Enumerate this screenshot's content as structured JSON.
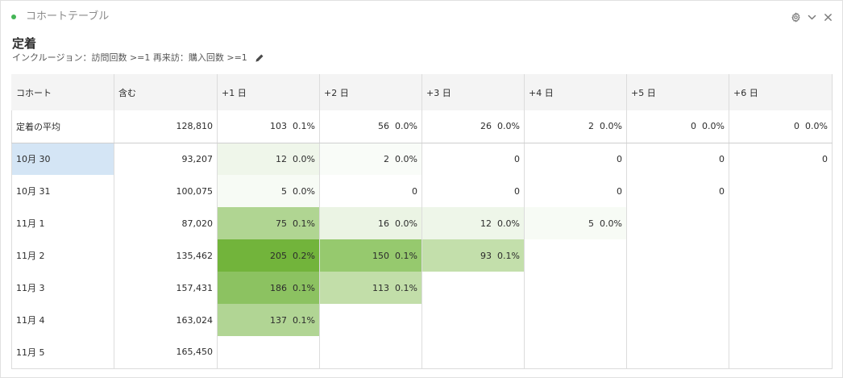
{
  "header": {
    "title": "コホートテーブル",
    "icons": [
      "gear-icon",
      "chevron-down-icon",
      "close-icon"
    ]
  },
  "section": {
    "title": "定着",
    "subtitle": "インクルージョン：訪問回数 >=1 再来訪：購入回数 >=1"
  },
  "table": {
    "headers": [
      "コホート",
      "含む",
      "+1 日",
      "+2 日",
      "+3 日",
      "+4 日",
      "+5 日",
      "+6 日"
    ],
    "average": {
      "label": "定着の平均",
      "included": "128,810",
      "cells": [
        {
          "count": "103",
          "pct": "0.1%"
        },
        {
          "count": "56",
          "pct": "0.0%"
        },
        {
          "count": "26",
          "pct": "0.0%"
        },
        {
          "count": "2",
          "pct": "0.0%"
        },
        {
          "count": "0",
          "pct": "0.0%"
        },
        {
          "count": "0",
          "pct": "0.0%"
        }
      ]
    },
    "rows": [
      {
        "label": "10月 30",
        "included": "93,207",
        "selected": true,
        "cells": [
          {
            "count": "12",
            "pct": "0.0%",
            "bg": "#eff6ea"
          },
          {
            "count": "2",
            "pct": "0.0%",
            "bg": "#f9fcf8"
          },
          {
            "count": "0",
            "pct": "",
            "bg": "#ffffff"
          },
          {
            "count": "0",
            "pct": "",
            "bg": "#ffffff"
          },
          {
            "count": "0",
            "pct": "",
            "bg": "#ffffff"
          },
          {
            "count": "0",
            "pct": "",
            "bg": "#ffffff"
          }
        ]
      },
      {
        "label": "10月 31",
        "included": "100,075",
        "cells": [
          {
            "count": "5",
            "pct": "0.0%",
            "bg": "#f7fbf5"
          },
          {
            "count": "0",
            "pct": "",
            "bg": "#ffffff"
          },
          {
            "count": "0",
            "pct": "",
            "bg": "#ffffff"
          },
          {
            "count": "0",
            "pct": "",
            "bg": "#ffffff"
          },
          {
            "count": "0",
            "pct": "",
            "bg": "#ffffff"
          },
          null
        ]
      },
      {
        "label": "11月 1",
        "included": "87,020",
        "cells": [
          {
            "count": "75",
            "pct": "0.1%",
            "bg": "#b0d592"
          },
          {
            "count": "16",
            "pct": "0.0%",
            "bg": "#ebf4e4"
          },
          {
            "count": "12",
            "pct": "0.0%",
            "bg": "#eef6e9"
          },
          {
            "count": "5",
            "pct": "0.0%",
            "bg": "#f7fbf5"
          },
          null,
          null
        ]
      },
      {
        "label": "11月 2",
        "included": "135,462",
        "cells": [
          {
            "count": "205",
            "pct": "0.2%",
            "bg": "#72b43b"
          },
          {
            "count": "150",
            "pct": "0.1%",
            "bg": "#96c96e"
          },
          {
            "count": "93",
            "pct": "0.1%",
            "bg": "#c3dfab"
          },
          null,
          null,
          null
        ]
      },
      {
        "label": "11月 3",
        "included": "157,431",
        "cells": [
          {
            "count": "186",
            "pct": "0.1%",
            "bg": "#8cc261"
          },
          {
            "count": "113",
            "pct": "0.1%",
            "bg": "#c2dea9"
          },
          null,
          null,
          null,
          null
        ]
      },
      {
        "label": "11月 4",
        "included": "163,024",
        "cells": [
          {
            "count": "137",
            "pct": "0.1%",
            "bg": "#b1d594"
          },
          null,
          null,
          null,
          null,
          null
        ]
      },
      {
        "label": "11月 5",
        "included": "165,450",
        "cells": [
          null,
          null,
          null,
          null,
          null,
          null
        ]
      }
    ]
  }
}
